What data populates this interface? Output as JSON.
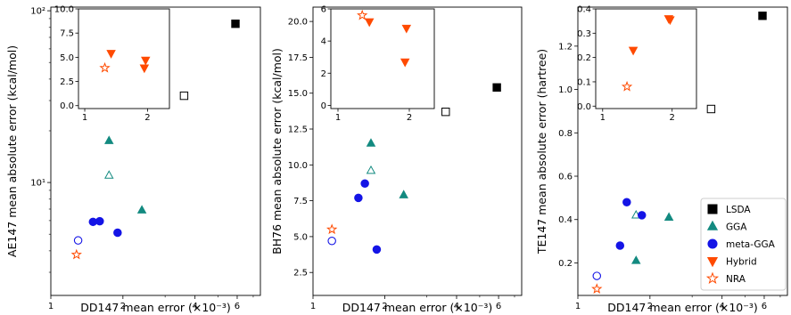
{
  "figure": {
    "width": 887,
    "height": 354
  },
  "legend": {
    "entries": [
      {
        "key": "LSDA",
        "label": "LSDA",
        "marker": "square-filled",
        "color": "#000000"
      },
      {
        "key": "GGA",
        "label": "GGA",
        "marker": "triangle-up-filled",
        "color": "#138a80"
      },
      {
        "key": "meta-GGA",
        "label": "meta-GGA",
        "marker": "circle-filled",
        "color": "#1414e6"
      },
      {
        "key": "Hybrid",
        "label": "Hybrid",
        "marker": "triangle-down-filled",
        "color": "#ff4a00"
      },
      {
        "key": "NRA",
        "label": "NRA",
        "marker": "star-open",
        "color": "#ff4a00"
      }
    ],
    "location": "lower right of third panel"
  },
  "chart_data": [
    {
      "type": "scatter",
      "xlabel": "DD147 mean error (×10⁻³)",
      "ylabel": "AE147 mean absolute error (kcal/mol)",
      "xscale": "log",
      "yscale": "log",
      "xlim": [
        1,
        7.5
      ],
      "ylim": [
        2.2,
        105
      ],
      "xticks": [
        {
          "v": 1,
          "label": "1"
        },
        {
          "v": 2,
          "label": "2"
        },
        {
          "v": 4,
          "label": "4"
        },
        {
          "v": 6,
          "label": "6"
        }
      ],
      "yticks": [
        {
          "v": 10,
          "label": "10¹"
        },
        {
          "v": 100,
          "label": "10²"
        }
      ],
      "points": [
        {
          "x": 5.9,
          "y": 84,
          "cat": "LSDA",
          "filled": true
        },
        {
          "x": 3.6,
          "y": 32,
          "cat": "LSDA",
          "filled": false
        },
        {
          "x": 1.75,
          "y": 17.5,
          "cat": "GGA",
          "filled": true
        },
        {
          "x": 1.75,
          "y": 11,
          "cat": "GGA",
          "filled": false
        },
        {
          "x": 2.4,
          "y": 6.9,
          "cat": "GGA",
          "filled": true
        },
        {
          "x": 1.5,
          "y": 5.9,
          "cat": "meta-GGA",
          "filled": true
        },
        {
          "x": 1.6,
          "y": 5.95,
          "cat": "meta-GGA",
          "filled": true
        },
        {
          "x": 1.9,
          "y": 5.1,
          "cat": "meta-GGA",
          "filled": true
        },
        {
          "x": 1.3,
          "y": 4.6,
          "cat": "meta-GGA",
          "filled": false
        },
        {
          "x": 1.28,
          "y": 3.8,
          "cat": "NRA",
          "filled": false
        }
      ],
      "inset": {
        "xscale": "linear",
        "yscale": "linear",
        "xlim": [
          0.9,
          2.35
        ],
        "ylim": [
          -0.3,
          10
        ],
        "xticks": [
          {
            "v": 1,
            "label": "1"
          },
          {
            "v": 2,
            "label": "2"
          }
        ],
        "yticks": [
          {
            "v": 0,
            "label": "0.0"
          },
          {
            "v": 2.5,
            "label": "2.5"
          },
          {
            "v": 5,
            "label": "5.0"
          },
          {
            "v": 7.5,
            "label": "7.5"
          },
          {
            "v": 10,
            "label": "10.0"
          }
        ],
        "points": [
          {
            "x": 1.42,
            "y": 5.4,
            "cat": "Hybrid"
          },
          {
            "x": 1.97,
            "y": 4.7,
            "cat": "Hybrid"
          },
          {
            "x": 1.95,
            "y": 3.9,
            "cat": "Hybrid"
          },
          {
            "x": 1.32,
            "y": 3.9,
            "cat": "NRA"
          }
        ]
      }
    },
    {
      "type": "scatter",
      "xlabel": "DD147 mean error (×10⁻³)",
      "ylabel": "BH76 mean absolute error (kcal/mol)",
      "xscale": "log",
      "yscale": "linear",
      "xlim": [
        1,
        7.5
      ],
      "ylim": [
        0.9,
        21
      ],
      "xticks": [
        {
          "v": 1,
          "label": "1"
        },
        {
          "v": 2,
          "label": "2"
        },
        {
          "v": 4,
          "label": "4"
        },
        {
          "v": 6,
          "label": "6"
        }
      ],
      "yticks": [
        {
          "v": 2.5,
          "label": "2.5"
        },
        {
          "v": 5,
          "label": "5.0"
        },
        {
          "v": 7.5,
          "label": "7.5"
        },
        {
          "v": 10,
          "label": "10.0"
        },
        {
          "v": 12.5,
          "label": "12.5"
        },
        {
          "v": 15,
          "label": "15.0"
        },
        {
          "v": 17.5,
          "label": "17.5"
        },
        {
          "v": 20,
          "label": "20.0"
        }
      ],
      "points": [
        {
          "x": 5.9,
          "y": 15.4,
          "cat": "LSDA",
          "filled": true
        },
        {
          "x": 3.6,
          "y": 13.7,
          "cat": "LSDA",
          "filled": false
        },
        {
          "x": 1.75,
          "y": 11.5,
          "cat": "GGA",
          "filled": true
        },
        {
          "x": 1.75,
          "y": 9.6,
          "cat": "GGA",
          "filled": false
        },
        {
          "x": 2.4,
          "y": 7.9,
          "cat": "GGA",
          "filled": true
        },
        {
          "x": 1.65,
          "y": 8.7,
          "cat": "meta-GGA",
          "filled": true
        },
        {
          "x": 1.55,
          "y": 7.7,
          "cat": "meta-GGA",
          "filled": true
        },
        {
          "x": 1.85,
          "y": 4.1,
          "cat": "meta-GGA",
          "filled": true
        },
        {
          "x": 1.2,
          "y": 4.7,
          "cat": "meta-GGA",
          "filled": false
        },
        {
          "x": 1.2,
          "y": 5.5,
          "cat": "NRA",
          "filled": false
        }
      ],
      "inset": {
        "xscale": "linear",
        "yscale": "linear",
        "xlim": [
          0.9,
          2.35
        ],
        "ylim": [
          -0.2,
          6
        ],
        "xticks": [
          {
            "v": 1,
            "label": "1"
          },
          {
            "v": 2,
            "label": "2"
          }
        ],
        "yticks": [
          {
            "v": 0,
            "label": "0"
          },
          {
            "v": 2,
            "label": "2"
          },
          {
            "v": 4,
            "label": "4"
          },
          {
            "v": 6,
            "label": "6"
          }
        ],
        "points": [
          {
            "x": 1.44,
            "y": 5.2,
            "cat": "Hybrid"
          },
          {
            "x": 1.96,
            "y": 4.8,
            "cat": "Hybrid"
          },
          {
            "x": 1.94,
            "y": 2.7,
            "cat": "Hybrid"
          },
          {
            "x": 1.34,
            "y": 5.6,
            "cat": "NRA"
          }
        ]
      }
    },
    {
      "type": "scatter",
      "xlabel": "DD147 mean error (×10⁻³)",
      "ylabel": "TE147 mean absolute error (hartree)",
      "xscale": "log",
      "yscale": "linear",
      "xlim": [
        1,
        7.5
      ],
      "ylim": [
        0.05,
        1.38
      ],
      "xticks": [
        {
          "v": 1,
          "label": "1"
        },
        {
          "v": 2,
          "label": "2"
        },
        {
          "v": 4,
          "label": "4"
        },
        {
          "v": 6,
          "label": "6"
        }
      ],
      "yticks": [
        {
          "v": 0.2,
          "label": "0.2"
        },
        {
          "v": 0.4,
          "label": "0.4"
        },
        {
          "v": 0.6,
          "label": "0.6"
        },
        {
          "v": 0.8,
          "label": "0.8"
        },
        {
          "v": 1.0,
          "label": "1.0"
        },
        {
          "v": 1.2,
          "label": "1.2"
        }
      ],
      "points": [
        {
          "x": 5.9,
          "y": 1.34,
          "cat": "LSDA",
          "filled": true
        },
        {
          "x": 3.6,
          "y": 0.91,
          "cat": "LSDA",
          "filled": false
        },
        {
          "x": 1.75,
          "y": 0.21,
          "cat": "GGA",
          "filled": true
        },
        {
          "x": 1.75,
          "y": 0.42,
          "cat": "GGA",
          "filled": false
        },
        {
          "x": 2.4,
          "y": 0.41,
          "cat": "GGA",
          "filled": true
        },
        {
          "x": 1.6,
          "y": 0.48,
          "cat": "meta-GGA",
          "filled": true
        },
        {
          "x": 1.85,
          "y": 0.42,
          "cat": "meta-GGA",
          "filled": true
        },
        {
          "x": 1.5,
          "y": 0.28,
          "cat": "meta-GGA",
          "filled": true
        },
        {
          "x": 1.2,
          "y": 0.14,
          "cat": "meta-GGA",
          "filled": false
        },
        {
          "x": 1.2,
          "y": 0.08,
          "cat": "NRA",
          "filled": false
        }
      ],
      "inset": {
        "xscale": "linear",
        "yscale": "linear",
        "xlim": [
          0.9,
          2.35
        ],
        "ylim": [
          -0.01,
          0.4
        ],
        "xticks": [
          {
            "v": 1,
            "label": "1"
          },
          {
            "v": 2,
            "label": "2"
          }
        ],
        "yticks": [
          {
            "v": 0,
            "label": "0.0"
          },
          {
            "v": 0.1,
            "label": "0.1"
          },
          {
            "v": 0.2,
            "label": "0.2"
          },
          {
            "v": 0.3,
            "label": "0.3"
          },
          {
            "v": 0.4,
            "label": "0.4"
          }
        ],
        "points": [
          {
            "x": 1.44,
            "y": 0.23,
            "cat": "Hybrid"
          },
          {
            "x": 1.95,
            "y": 0.36,
            "cat": "Hybrid"
          },
          {
            "x": 1.97,
            "y": 0.355,
            "cat": "Hybrid"
          },
          {
            "x": 1.35,
            "y": 0.08,
            "cat": "NRA"
          }
        ]
      }
    }
  ]
}
